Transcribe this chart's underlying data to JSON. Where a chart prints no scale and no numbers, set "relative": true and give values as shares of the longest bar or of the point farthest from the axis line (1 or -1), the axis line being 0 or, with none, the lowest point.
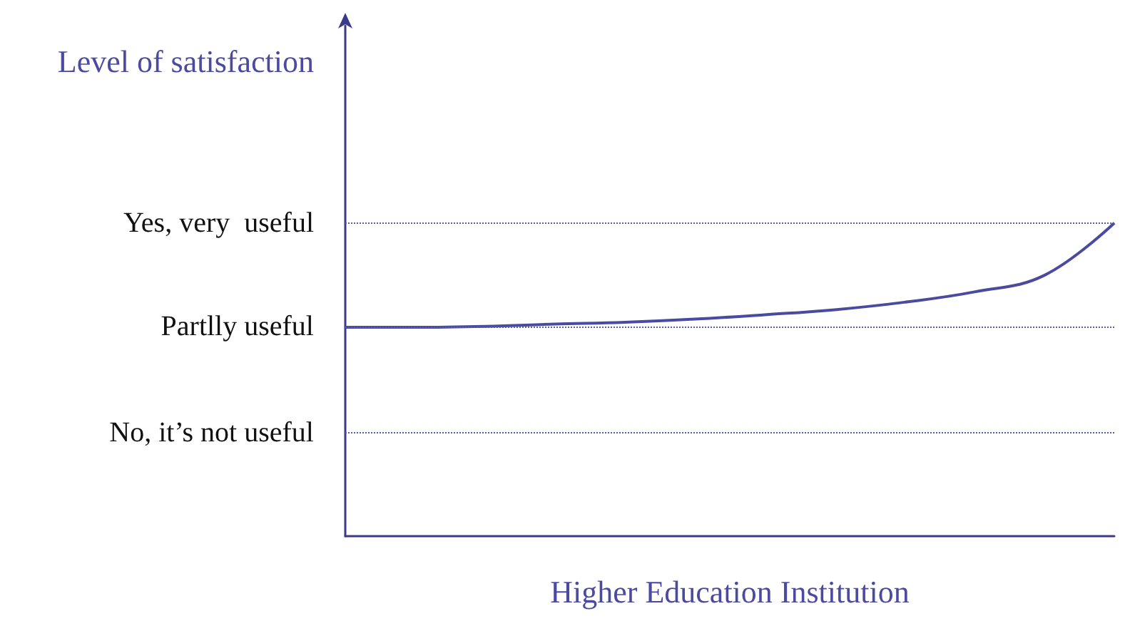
{
  "chart_data": {
    "type": "line",
    "ylabel": "Level of satisfaction",
    "xlabel": "Higher Education Institution",
    "categories": [
      null,
      null,
      null,
      null,
      null,
      null,
      null,
      null,
      null,
      null,
      null,
      null
    ],
    "series": [
      {
        "color": "#4a4aa0",
        "values": [
          0.667,
          0.667,
          0.67,
          0.677,
          0.683,
          0.693,
          0.707,
          0.723,
          0.747,
          0.78,
          0.833,
          1
        ]
      }
    ],
    "relative": true,
    "ref_lines": [
      {
        "axis": "y",
        "value": 1,
        "label": "Yes, very  useful",
        "color": "#5a5aaa",
        "line_style": "dotted"
      },
      {
        "axis": "y",
        "value": 0.667,
        "label": "Partlly useful",
        "color": "#5a5aaa",
        "line_style": "dotted"
      },
      {
        "axis": "y",
        "value": 0.333,
        "label": "No, it’s not useful",
        "color": "#5a5aaa",
        "line_style": "dotted"
      }
    ],
    "marker": "none",
    "line_style": "solid"
  }
}
